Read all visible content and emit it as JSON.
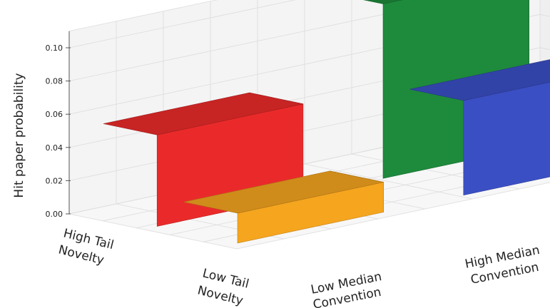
{
  "chart_data": {
    "type": "bar",
    "subtype": "3d-bar",
    "title": "",
    "ylabel": "Hit paper probability",
    "ylim": [
      0,
      0.11
    ],
    "yticks": [
      0.0,
      0.02,
      0.04,
      0.06,
      0.08,
      0.1
    ],
    "ytick_labels": [
      "0.00",
      "0.02",
      "0.04",
      "0.06",
      "0.08",
      "0.10"
    ],
    "grid": true,
    "x_categories": [
      {
        "line1": "High Tail",
        "line2": "Novelty"
      },
      {
        "line1": "Low Tail",
        "line2": "Novelty"
      }
    ],
    "y_categories": [
      {
        "line1": "Low Median",
        "line2": "Convention"
      },
      {
        "line1": "High Median",
        "line2": "Convention"
      }
    ],
    "bars": [
      {
        "novelty": "High Tail Novelty",
        "convention": "Low Median Convention",
        "value": 0.055,
        "color": "#ea2a2a"
      },
      {
        "novelty": "Low Tail Novelty",
        "convention": "Low Median Convention",
        "value": 0.018,
        "color": "#f5a51e"
      },
      {
        "novelty": "High Tail Novelty",
        "convention": "High Median Convention",
        "value": 0.105,
        "color": "#1e8a3c"
      },
      {
        "novelty": "Low Tail Novelty",
        "convention": "High Median Convention",
        "value": 0.057,
        "color": "#3b4fc4"
      }
    ]
  }
}
